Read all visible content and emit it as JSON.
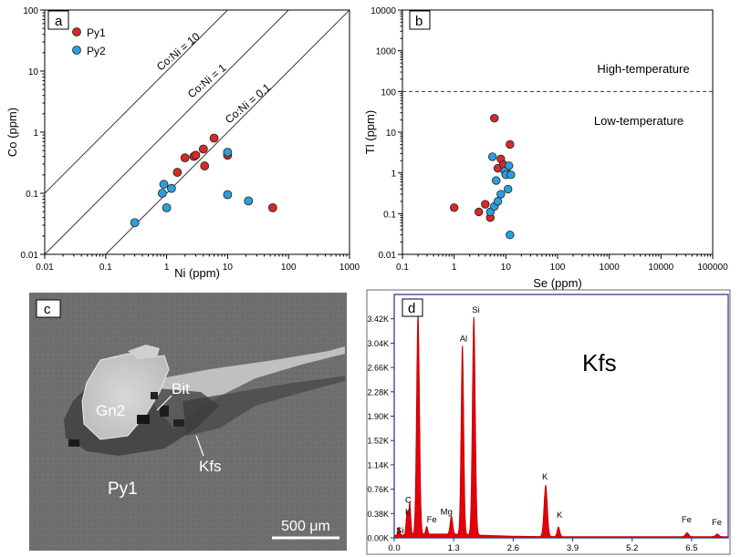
{
  "chart_data": [
    {
      "panel": "a",
      "type": "scatter",
      "xlabel": "Ni (ppm)",
      "ylabel": "Co (ppm)",
      "xscale": "log",
      "yscale": "log",
      "xlim": [
        0.01,
        1000
      ],
      "ylim": [
        0.01,
        100
      ],
      "x_tick_labels": [
        "0.01",
        "0.1",
        "1",
        "10",
        "100",
        "1000"
      ],
      "y_tick_labels": [
        "0.01",
        "0.1",
        "1",
        "10",
        "100"
      ],
      "legend_position": "top-left",
      "reference_lines": [
        {
          "label": "Co:Ni = 10",
          "ratio": 10
        },
        {
          "label": "Co:Ni = 1",
          "ratio": 1
        },
        {
          "label": "Co:Ni = 0.1",
          "ratio": 0.1
        }
      ],
      "series": [
        {
          "name": "Py1",
          "color": "#d42a2a",
          "points": [
            [
              1.5,
              0.22
            ],
            [
              2.0,
              0.38
            ],
            [
              2.8,
              0.4
            ],
            [
              3.0,
              0.42
            ],
            [
              4.0,
              0.53
            ],
            [
              4.2,
              0.28
            ],
            [
              6.0,
              0.8
            ],
            [
              10.0,
              0.42
            ],
            [
              55.0,
              0.058
            ]
          ]
        },
        {
          "name": "Py2",
          "color": "#2b9fdc",
          "points": [
            [
              0.3,
              0.033
            ],
            [
              0.85,
              0.1
            ],
            [
              0.9,
              0.14
            ],
            [
              1.0,
              0.058
            ],
            [
              1.2,
              0.12
            ],
            [
              10.0,
              0.47
            ],
            [
              10.0,
              0.095
            ],
            [
              22.0,
              0.075
            ]
          ]
        }
      ]
    },
    {
      "panel": "b",
      "type": "scatter",
      "xlabel": "Se (ppm)",
      "ylabel": "Tl (ppm)",
      "xscale": "log",
      "yscale": "log",
      "xlim": [
        0.1,
        100000
      ],
      "ylim": [
        0.01,
        10000
      ],
      "x_tick_labels": [
        "0.1",
        "1",
        "10",
        "100",
        "1000",
        "10000",
        "100000"
      ],
      "y_tick_labels": [
        "0.01",
        "0.1",
        "1",
        "10",
        "100",
        "1000",
        "10000"
      ],
      "threshold_line": {
        "y": 100,
        "style": "dashed"
      },
      "region_labels": [
        "High-temperature",
        "Low-temperature"
      ],
      "series": [
        {
          "name": "Py1",
          "color": "#d42a2a",
          "points": [
            [
              1.0,
              0.14
            ],
            [
              3.0,
              0.11
            ],
            [
              4.0,
              0.17
            ],
            [
              5.0,
              0.08
            ],
            [
              6.0,
              22.0
            ],
            [
              7.0,
              1.3
            ],
            [
              8.0,
              2.2
            ],
            [
              9.0,
              1.6
            ],
            [
              10.5,
              1.0
            ],
            [
              12.0,
              5.0
            ]
          ]
        },
        {
          "name": "Py2",
          "color": "#2b9fdc",
          "points": [
            [
              5.0,
              0.11
            ],
            [
              5.5,
              2.5
            ],
            [
              6.0,
              0.15
            ],
            [
              6.5,
              0.65
            ],
            [
              7.0,
              0.2
            ],
            [
              8.0,
              0.3
            ],
            [
              9.5,
              1.1
            ],
            [
              10.0,
              0.9
            ],
            [
              11.0,
              0.4
            ],
            [
              11.5,
              1.5
            ],
            [
              12.0,
              0.03
            ],
            [
              12.5,
              0.9
            ]
          ]
        }
      ]
    },
    {
      "panel": "d",
      "type": "area",
      "x_tick_labels": [
        "0.0",
        "1.3",
        "2.6",
        "3.9",
        "5.2",
        "6.5"
      ],
      "xlim": [
        0,
        7.3
      ],
      "y_tick_labels": [
        "0.00K",
        "0.38K",
        "0.76K",
        "1.14K",
        "1.52K",
        "1.90K",
        "2.28K",
        "2.66K",
        "3.04K",
        "3.42K"
      ],
      "ylim": [
        0,
        3.8
      ],
      "title": "Kfs",
      "peaks": [
        {
          "label": "Si",
          "x": 0.1,
          "y": 0.12
        },
        {
          "label": "C",
          "x": 0.28,
          "y": 0.35
        },
        {
          "label": "K",
          "x": 0.34,
          "y": 0.5
        },
        {
          "label": "O",
          "x": 0.52,
          "y": 3.45
        },
        {
          "label": "Fe",
          "x": 0.71,
          "y": 0.12
        },
        {
          "label": "Mg",
          "x": 1.25,
          "y": 0.28
        },
        {
          "label": "Al",
          "x": 1.49,
          "y": 2.95
        },
        {
          "label": "Si",
          "x": 1.74,
          "y": 3.4
        },
        {
          "label": "K",
          "x": 3.31,
          "y": 0.8
        },
        {
          "label": "K",
          "x": 3.59,
          "y": 0.15
        },
        {
          "label": "Fe",
          "x": 6.4,
          "y": 0.06
        },
        {
          "label": "Fe",
          "x": 7.06,
          "y": 0.04
        }
      ]
    }
  ],
  "panel_labels": {
    "a": "a",
    "b": "b",
    "c": "c",
    "d": "d"
  },
  "image_panel": {
    "labels": [
      "Gn2",
      "Bit",
      "Kfs",
      "Py1"
    ],
    "scale_bar": "500 μm"
  }
}
